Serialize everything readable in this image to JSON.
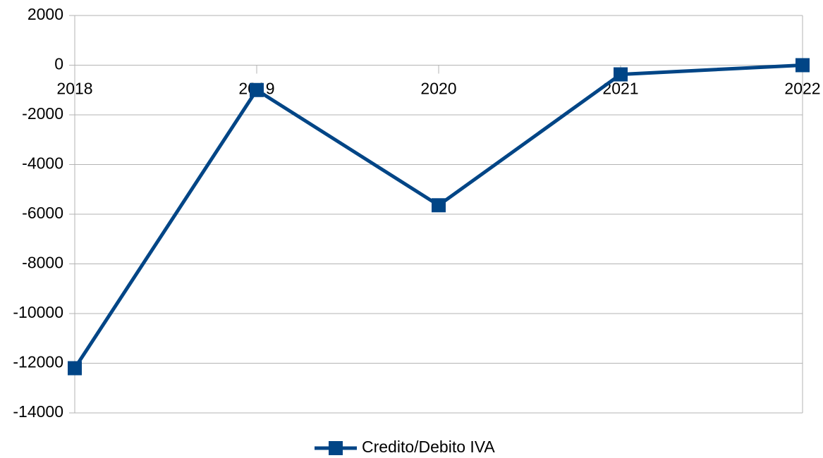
{
  "chart_data": {
    "type": "line",
    "categories": [
      "2018",
      "2019",
      "2020",
      "2021",
      "2022"
    ],
    "series": [
      {
        "name": "Credito/Debito IVA",
        "color": "#004586",
        "values": [
          -12200,
          -1000,
          -5640,
          -370,
          0
        ]
      }
    ],
    "ylim": [
      -14000,
      2000
    ],
    "yticks": [
      -14000,
      -12000,
      -10000,
      -8000,
      -6000,
      -4000,
      -2000,
      0,
      2000
    ],
    "grid": true,
    "legend": "bottom"
  }
}
